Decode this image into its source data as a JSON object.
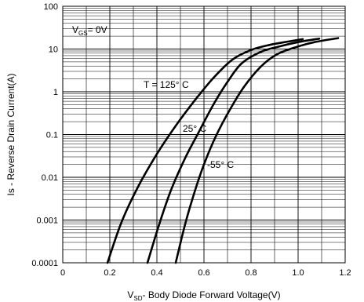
{
  "chart_data": {
    "type": "line",
    "title": "",
    "xlabel": {
      "prefix": "V",
      "sub": "SD",
      "rest": "- Body Diode Forward Voltage(V)"
    },
    "ylabel": "Is - Reverse Drain Current(A)",
    "xlim": [
      0,
      1.2
    ],
    "ylim": [
      0.0001,
      100
    ],
    "yscale": "log",
    "grid": true,
    "x_ticks": [
      "0",
      "0.2",
      "0.4",
      "0.6",
      "0.8",
      "1.0",
      "1.2"
    ],
    "y_ticks": [
      "0.0001",
      "0.001",
      "0.01",
      "0.1",
      "1",
      "10",
      "100"
    ],
    "condition": {
      "prefix": "V",
      "sub": "GS",
      "rest": "= 0V"
    },
    "series": [
      {
        "name": "T = 125° C",
        "x": [
          0.19,
          0.25,
          0.32,
          0.4,
          0.48,
          0.56,
          0.64,
          0.72,
          0.8,
          0.88,
          0.96,
          1.02
        ],
        "y": [
          0.0001,
          0.0009,
          0.006,
          0.035,
          0.16,
          0.62,
          2.1,
          5.6,
          9.5,
          12.5,
          15.0,
          17.0
        ]
      },
      {
        "name": "25° C",
        "x": [
          0.36,
          0.41,
          0.46,
          0.52,
          0.58,
          0.64,
          0.7,
          0.76,
          0.84,
          0.92,
          1.0,
          1.09
        ],
        "y": [
          0.0001,
          0.0008,
          0.005,
          0.028,
          0.12,
          0.5,
          1.7,
          4.6,
          8.5,
          11.5,
          14.5,
          17.5
        ]
      },
      {
        "name": "-55° C",
        "x": [
          0.48,
          0.52,
          0.56,
          0.6,
          0.65,
          0.71,
          0.77,
          0.84,
          0.91,
          0.99,
          1.07,
          1.17
        ],
        "y": [
          0.0001,
          0.0008,
          0.0045,
          0.02,
          0.09,
          0.38,
          1.3,
          3.8,
          7.5,
          11.0,
          14.5,
          18.0
        ]
      }
    ]
  }
}
